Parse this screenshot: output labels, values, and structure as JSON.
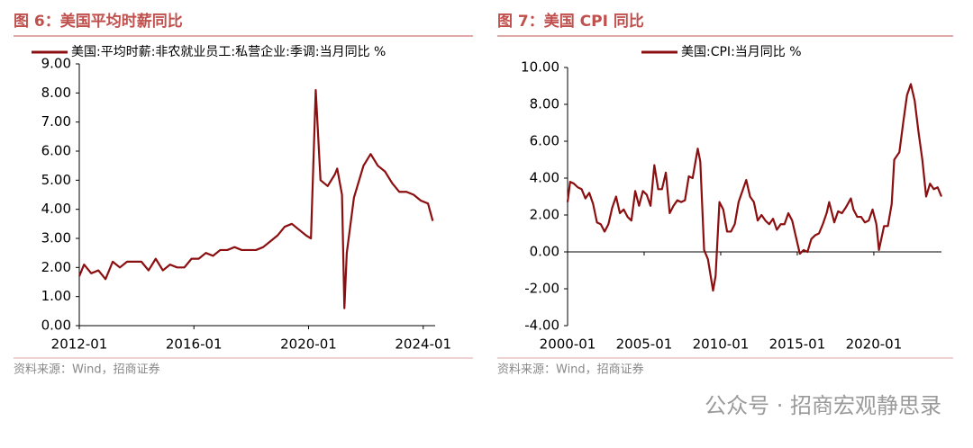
{
  "chart_data": [
    {
      "type": "line",
      "title": "图 6：美国平均时薪同比",
      "source": "资料来源：Wind，招商证券",
      "legend": "top",
      "x": [
        "2012-01",
        "2012-03",
        "2012-06",
        "2012-09",
        "2012-12",
        "2013-03",
        "2013-06",
        "2013-09",
        "2013-12",
        "2014-03",
        "2014-06",
        "2014-09",
        "2014-12",
        "2015-03",
        "2015-06",
        "2015-09",
        "2015-12",
        "2016-03",
        "2016-06",
        "2016-09",
        "2016-12",
        "2017-03",
        "2017-06",
        "2017-09",
        "2017-12",
        "2018-03",
        "2018-06",
        "2018-09",
        "2018-12",
        "2019-03",
        "2019-06",
        "2019-09",
        "2019-12",
        "2020-02",
        "2020-04",
        "2020-06",
        "2020-09",
        "2020-12",
        "2021-01",
        "2021-03",
        "2021-04",
        "2021-05",
        "2021-08",
        "2021-12",
        "2022-03",
        "2022-06",
        "2022-09",
        "2022-12",
        "2023-03",
        "2023-06",
        "2023-09",
        "2023-12",
        "2024-03",
        "2024-05"
      ],
      "series": [
        {
          "name": "美国:平均时薪:非农就业员工:私营企业:季调:当月同比 %",
          "color": "#8b0f10",
          "values": [
            1.7,
            2.1,
            1.8,
            1.9,
            1.6,
            2.2,
            2.0,
            2.2,
            2.2,
            2.2,
            1.9,
            2.3,
            1.9,
            2.1,
            2.0,
            2.0,
            2.3,
            2.3,
            2.5,
            2.4,
            2.6,
            2.6,
            2.7,
            2.6,
            2.6,
            2.6,
            2.7,
            2.9,
            3.1,
            3.4,
            3.5,
            3.3,
            3.1,
            3.0,
            8.1,
            5.0,
            4.8,
            5.2,
            5.4,
            4.5,
            0.6,
            2.5,
            4.4,
            5.5,
            5.9,
            5.5,
            5.3,
            4.9,
            4.6,
            4.6,
            4.5,
            4.3,
            4.2,
            3.6
          ]
        }
      ],
      "xlim": [
        "2012-01",
        "2024-06"
      ],
      "xticks": [
        "2012-01",
        "2016-01",
        "2020-01",
        "2024-01"
      ],
      "ylim": [
        0,
        9
      ],
      "yticks": [
        {
          "value": 0,
          "label": "0.00"
        },
        {
          "value": 1,
          "label": "1.00"
        },
        {
          "value": 2,
          "label": "2.00"
        },
        {
          "value": 3,
          "label": "3.00"
        },
        {
          "value": 4,
          "label": "4.00"
        },
        {
          "value": 5,
          "label": "5.00"
        },
        {
          "value": 6,
          "label": "6.00"
        },
        {
          "value": 7,
          "label": "7.00"
        },
        {
          "value": 8,
          "label": "8.00"
        },
        {
          "value": 9,
          "label": "9.00"
        }
      ],
      "grid": false
    },
    {
      "type": "line",
      "title": "图 7：美国 CPI 同比",
      "source": "资料来源：Wind，招商证券",
      "legend": "top",
      "x": [
        "2000-01",
        "2000-03",
        "2000-06",
        "2000-09",
        "2000-12",
        "2001-03",
        "2001-06",
        "2001-09",
        "2001-12",
        "2002-03",
        "2002-06",
        "2002-09",
        "2002-12",
        "2003-03",
        "2003-06",
        "2003-09",
        "2003-12",
        "2004-03",
        "2004-06",
        "2004-09",
        "2004-12",
        "2005-03",
        "2005-06",
        "2005-09",
        "2005-12",
        "2006-03",
        "2006-06",
        "2006-09",
        "2006-12",
        "2007-03",
        "2007-06",
        "2007-09",
        "2007-12",
        "2008-03",
        "2008-07",
        "2008-09",
        "2008-12",
        "2009-03",
        "2009-07",
        "2009-09",
        "2009-12",
        "2010-03",
        "2010-06",
        "2010-09",
        "2010-12",
        "2011-03",
        "2011-09",
        "2011-12",
        "2012-03",
        "2012-06",
        "2012-09",
        "2012-12",
        "2013-03",
        "2013-06",
        "2013-09",
        "2013-12",
        "2014-03",
        "2014-06",
        "2014-09",
        "2014-12",
        "2015-03",
        "2015-06",
        "2015-09",
        "2015-12",
        "2016-03",
        "2016-06",
        "2016-09",
        "2016-12",
        "2017-02",
        "2017-06",
        "2017-09",
        "2017-12",
        "2018-03",
        "2018-07",
        "2018-09",
        "2018-12",
        "2019-03",
        "2019-06",
        "2019-09",
        "2019-12",
        "2020-03",
        "2020-05",
        "2020-09",
        "2020-12",
        "2021-03",
        "2021-05",
        "2021-09",
        "2021-12",
        "2022-03",
        "2022-06",
        "2022-09",
        "2022-12",
        "2023-03",
        "2023-06",
        "2023-09",
        "2023-12",
        "2024-03",
        "2024-06"
      ],
      "series": [
        {
          "name": "美国:CPI:当月同比 %",
          "color": "#8b0f10",
          "values": [
            2.7,
            3.8,
            3.7,
            3.5,
            3.4,
            2.9,
            3.2,
            2.6,
            1.6,
            1.5,
            1.1,
            1.5,
            2.4,
            3.0,
            2.1,
            2.3,
            1.9,
            1.7,
            3.3,
            2.5,
            3.3,
            3.1,
            2.5,
            4.7,
            3.4,
            3.4,
            4.3,
            2.1,
            2.5,
            2.8,
            2.7,
            2.8,
            4.1,
            4.0,
            5.6,
            4.9,
            0.1,
            -0.4,
            -2.1,
            -1.3,
            2.7,
            2.3,
            1.1,
            1.1,
            1.5,
            2.7,
            3.9,
            3.0,
            2.7,
            1.7,
            2.0,
            1.7,
            1.5,
            1.8,
            1.2,
            1.5,
            1.5,
            2.1,
            1.7,
            0.8,
            -0.1,
            0.1,
            0.0,
            0.7,
            0.9,
            1.0,
            1.5,
            2.1,
            2.7,
            1.6,
            2.2,
            2.1,
            2.4,
            2.9,
            2.3,
            1.9,
            1.9,
            1.6,
            1.7,
            2.3,
            1.5,
            0.1,
            1.4,
            1.4,
            2.6,
            5.0,
            5.4,
            7.0,
            8.5,
            9.1,
            8.2,
            6.5,
            5.0,
            3.0,
            3.7,
            3.4,
            3.5,
            3.0
          ]
        }
      ],
      "xlim": [
        "2000-01",
        "2024-06"
      ],
      "xticks": [
        "2000-01",
        "2005-01",
        "2010-01",
        "2015-01",
        "2020-01"
      ],
      "ylim": [
        -4,
        10
      ],
      "yticks": [
        {
          "value": -4,
          "label": "-4.00"
        },
        {
          "value": -2,
          "label": "-2.00"
        },
        {
          "value": 0,
          "label": "0.00"
        },
        {
          "value": 2,
          "label": "2.00"
        },
        {
          "value": 4,
          "label": "4.00"
        },
        {
          "value": 6,
          "label": "6.00"
        },
        {
          "value": 8,
          "label": "8.00"
        },
        {
          "value": 10,
          "label": "10.00"
        }
      ],
      "grid": false
    }
  ],
  "watermark": "公众号 · 招商宏观静思录"
}
